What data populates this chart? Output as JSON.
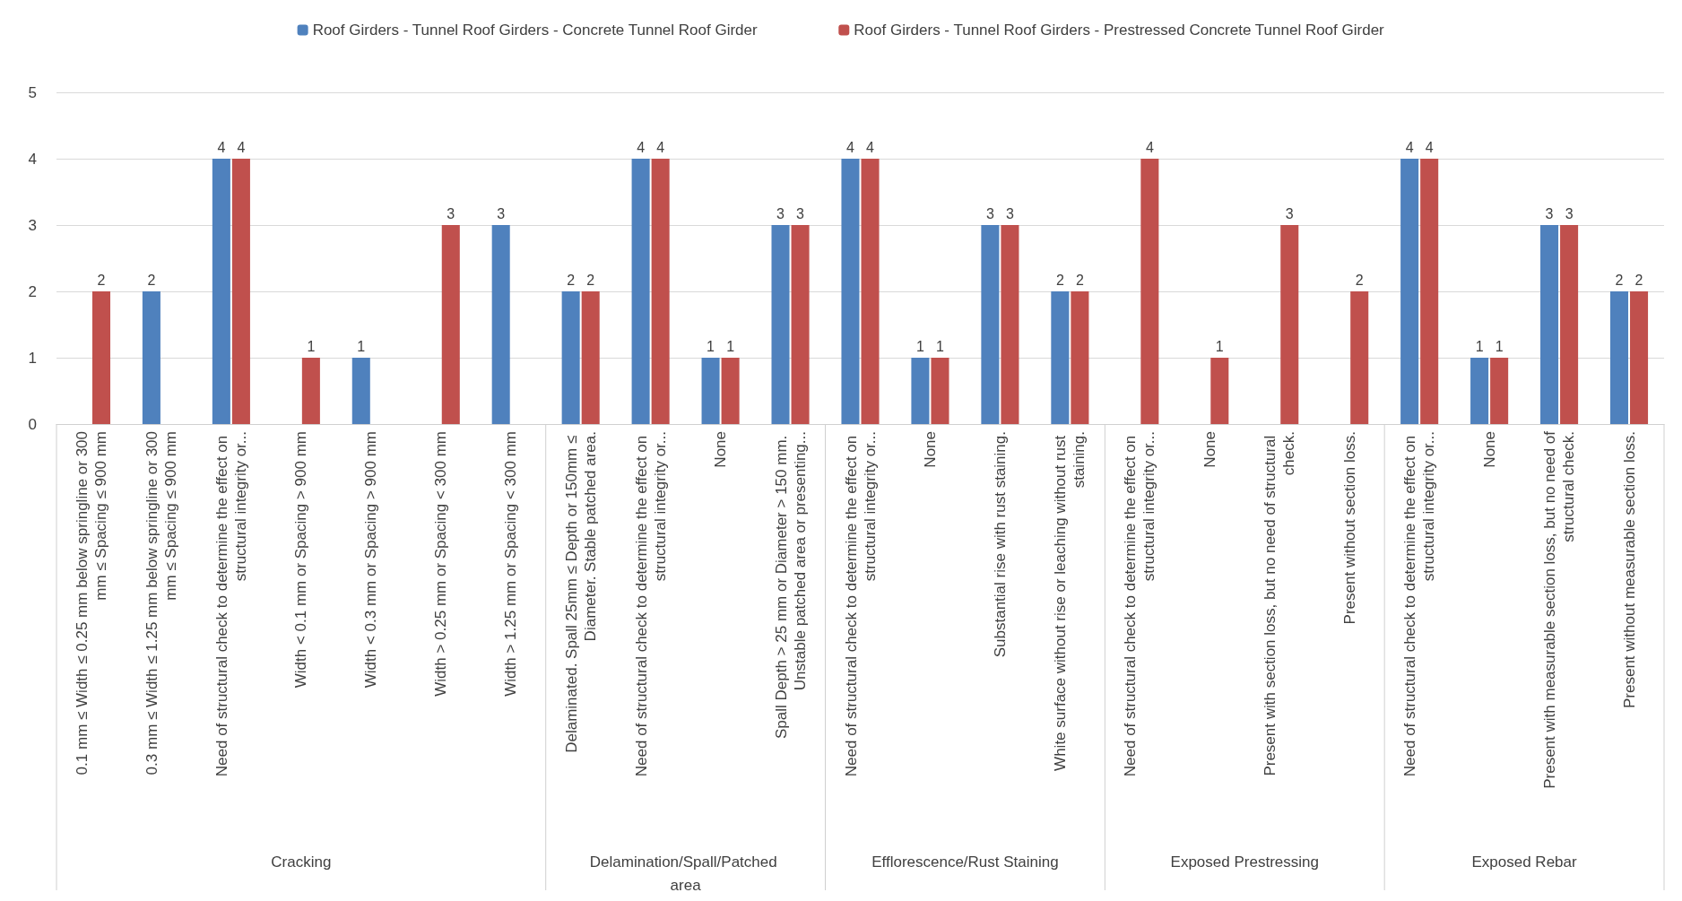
{
  "chart_data": {
    "type": "bar",
    "categories": [
      "0.1 mm ≤ Width ≤ 0.25 mm below springline or 300 mm ≤ Spacing ≤ 900 mm",
      "0.3 mm ≤ Width ≤ 1.25 mm below springline or 300 mm ≤ Spacing ≤ 900 mm",
      "Need of structural check to determine the effect on structural integrity or...",
      "Width < 0.1 mm or Spacing > 900 mm",
      "Width < 0.3 mm or Spacing > 900 mm",
      "Width > 0.25 mm or Spacing < 300 mm",
      "Width > 1.25 mm or Spacing < 300 mm",
      "Delaminated. Spall 25mm ≤ Depth or 150mm ≤ Diameter. Stable patched area.",
      "Need of structural check to determine the effect on structural integrity or...",
      "None",
      "Spall Depth > 25 mm or Diameter > 150 mm. Unstable patched area or presenting...",
      "Need of structural check to determine the effect on structural integrity or...",
      "None",
      "Substantial rise with rust staining.",
      "White surface without rise or leaching without rust staining.",
      "Need of structural check to determine the effect on structural integrity or...",
      "None",
      "Present with section loss, but no need of structural check.",
      "Present without section loss.",
      "Need of structural check to determine the effect on structural integrity or...",
      "None",
      "Present with measurable section loss, but no need of structural check.",
      "Present without measurable section loss."
    ],
    "series": [
      {
        "name": "Roof Girders - Tunnel Roof Girders - Concrete Tunnel Roof Girder",
        "color": "#4f81bd",
        "values": [
          null,
          2,
          4,
          null,
          1,
          null,
          3,
          2,
          4,
          1,
          3,
          4,
          1,
          3,
          2,
          null,
          null,
          null,
          null,
          4,
          1,
          3,
          2
        ]
      },
      {
        "name": "Roof Girders - Tunnel Roof Girders - Prestressed Concrete Tunnel Roof Girder",
        "color": "#c0504d",
        "values": [
          2,
          null,
          4,
          1,
          null,
          3,
          null,
          2,
          4,
          1,
          3,
          4,
          1,
          3,
          2,
          4,
          1,
          3,
          2,
          4,
          1,
          3,
          2
        ]
      }
    ],
    "annotations": [
      "Cracking",
      "Delamination/Spall/Patched area",
      "Efflorescence/Rust Staining",
      "Exposed Prestressing",
      "Exposed Rebar"
    ],
    "ylim": [
      0,
      5
    ],
    "yticks": [
      0,
      1,
      2,
      3,
      4,
      5
    ],
    "grid": "y",
    "legend": "top",
    "data_labels": true
  }
}
